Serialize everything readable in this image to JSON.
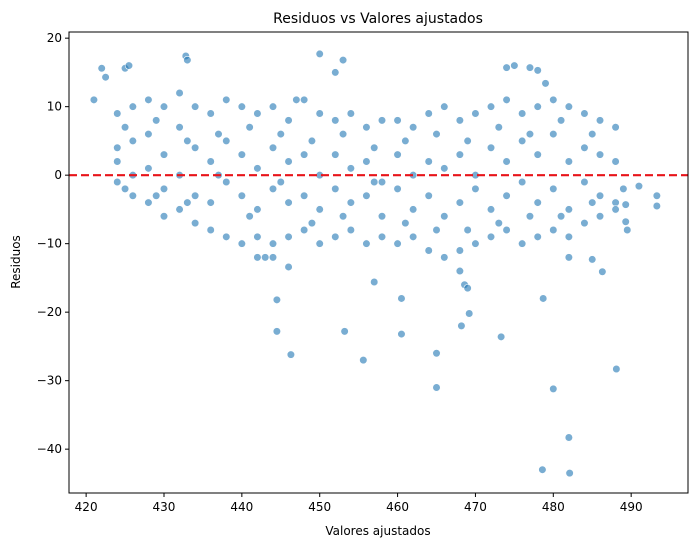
{
  "chart_data": {
    "type": "scatter",
    "title": "Residuos vs Valores ajustados",
    "x_label": "Valores ajustados",
    "y_label": "Residuos",
    "color": "#1f77b4",
    "hline": 0,
    "hline_color": "#e8141a",
    "xlim": [
      417.8,
      497.3
    ],
    "ylim": [
      -46.4,
      20.9
    ],
    "xticks": [
      420,
      430,
      440,
      450,
      460,
      470,
      480,
      490
    ],
    "yticks": [
      {
        "value": -40,
        "label": "−40"
      },
      {
        "value": -30,
        "label": "−30"
      },
      {
        "value": -20,
        "label": "−20"
      },
      {
        "value": -10,
        "label": "−10"
      },
      0,
      10,
      20
    ],
    "x": [
      421,
      422,
      422.5,
      425,
      425.5,
      432.8,
      433,
      447,
      450,
      452,
      453,
      474,
      475,
      477,
      478,
      479,
      444.5,
      444.5,
      446.3,
      453.2,
      455.6,
      457,
      460.5,
      460.5,
      465,
      465,
      468.2,
      468.6,
      469.2,
      473.3,
      478.7,
      480,
      482,
      478.6,
      482.1,
      488.1,
      486.3,
      493.3,
      493.3,
      491,
      489.5,
      489.3,
      489.3,
      489,
      485,
      482,
      446,
      444,
      442,
      443,
      468,
      469,
      424,
      424,
      424,
      424,
      426,
      426,
      426,
      426,
      428,
      428,
      428,
      428,
      430,
      430,
      430,
      430,
      432,
      432,
      432,
      432,
      434,
      434,
      434,
      434,
      436,
      436,
      436,
      436,
      438,
      438,
      438,
      438,
      440,
      440,
      440,
      440,
      442,
      442,
      442,
      442,
      444,
      444,
      444,
      444,
      446,
      446,
      446,
      446,
      448,
      448,
      448,
      448,
      450,
      450,
      450,
      450,
      452,
      452,
      452,
      452,
      454,
      454,
      454,
      454,
      456,
      456,
      456,
      456,
      458,
      458,
      458,
      458,
      460,
      460,
      460,
      460,
      462,
      462,
      462,
      462,
      464,
      464,
      464,
      464,
      466,
      466,
      466,
      466,
      468,
      468,
      468,
      468,
      470,
      470,
      470,
      470,
      472,
      472,
      472,
      472,
      474,
      474,
      474,
      474,
      476,
      476,
      476,
      476,
      478,
      478,
      478,
      478,
      480,
      480,
      480,
      480,
      482,
      482,
      482,
      482,
      484,
      484,
      484,
      484,
      486,
      486,
      486,
      486,
      488,
      488,
      488,
      488,
      425,
      425,
      429,
      429,
      433,
      433,
      437,
      437,
      441,
      441,
      445,
      445,
      449,
      449,
      453,
      453,
      457,
      457,
      461,
      461,
      465,
      465,
      469,
      469,
      473,
      473,
      477,
      477,
      481,
      481,
      485,
      485
    ],
    "values": [
      11,
      15.6,
      14.3,
      15.6,
      16,
      17.4,
      16.8,
      11,
      17.7,
      15,
      16.8,
      15.7,
      16,
      15.7,
      15.3,
      13.4,
      -18.2,
      -22.8,
      -26.2,
      -22.8,
      -27,
      -15.6,
      -18,
      -23.2,
      -26,
      -31,
      -22,
      -16,
      -20.2,
      -23.6,
      -18,
      -31.2,
      -38.3,
      -43,
      -43.5,
      -28.3,
      -14.1,
      -3,
      -4.5,
      -1.6,
      -8,
      -6.8,
      -4.3,
      -2,
      -12.3,
      -12,
      -13.4,
      -12,
      -12,
      -12,
      -14,
      -16.5,
      9,
      4,
      -1,
      2,
      10,
      5,
      0,
      -3,
      11,
      6,
      1,
      -4,
      10,
      3,
      -2,
      -6,
      12,
      7,
      0,
      -5,
      10,
      4,
      -3,
      -7,
      9,
      2,
      -4,
      -8,
      11,
      5,
      -1,
      -9,
      10,
      3,
      -3,
      -10,
      9,
      1,
      -5,
      -9,
      10,
      4,
      -2,
      -10,
      8,
      2,
      -4,
      -9,
      11,
      3,
      -3,
      -8,
      9,
      0,
      -5,
      -10,
      8,
      3,
      -2,
      -9,
      9,
      1,
      -4,
      -8,
      7,
      2,
      -3,
      -10,
      8,
      -1,
      -6,
      -9,
      8,
      3,
      -2,
      -10,
      7,
      0,
      -5,
      -9,
      9,
      2,
      -3,
      -11,
      10,
      1,
      -6,
      -12,
      8,
      3,
      -4,
      -11,
      9,
      0,
      -2,
      -10,
      10,
      4,
      -5,
      -9,
      11,
      2,
      -3,
      -8,
      9,
      5,
      -1,
      -10,
      10,
      3,
      -4,
      -9,
      11,
      6,
      -2,
      -8,
      10,
      2,
      -5,
      -9,
      9,
      4,
      -1,
      -7,
      8,
      3,
      -3,
      -6,
      7,
      2,
      -4,
      -5,
      7,
      -2,
      8,
      -3,
      5,
      -4,
      6,
      0,
      7,
      -6,
      6,
      -1,
      5,
      -7,
      6,
      -6,
      4,
      -1,
      5,
      -7,
      6,
      -8,
      5,
      -8,
      7,
      -7,
      6,
      -6,
      8,
      -6,
      6,
      -4
    ]
  }
}
